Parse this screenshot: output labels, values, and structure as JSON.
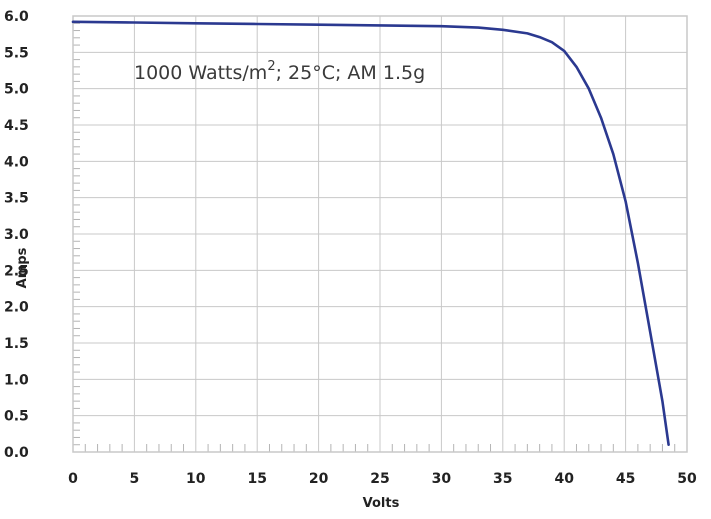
{
  "chart_data": {
    "type": "line",
    "annotation": {
      "text_before": "1000 Watts/m",
      "superscript": "2",
      "text_after": "; 25°C; AM 1.5g"
    },
    "xlabel": "Volts",
    "ylabel": "Amps",
    "xlim": [
      0,
      50
    ],
    "ylim": [
      0.0,
      6.0
    ],
    "x_ticks": [
      0,
      5,
      10,
      15,
      20,
      25,
      30,
      35,
      40,
      45,
      50
    ],
    "x_tick_labels": [
      "0",
      "5",
      "10",
      "15",
      "20",
      "25",
      "30",
      "35",
      "40",
      "45",
      "50"
    ],
    "y_ticks": [
      0.0,
      0.5,
      1.0,
      1.5,
      2.0,
      2.5,
      3.0,
      3.5,
      4.0,
      4.5,
      5.0,
      5.5,
      6.0
    ],
    "y_tick_labels": [
      "0.0",
      "0.5",
      "1.0",
      "1.5",
      "2.0",
      "2.5",
      "3.0",
      "3.5",
      "4.0",
      "4.5",
      "5.0",
      "5.5",
      "6.0"
    ],
    "grid": true,
    "colors": {
      "curve": "#2b3990",
      "grid": "#c8c8c8",
      "frame": "#c8c8c8"
    },
    "series": [
      {
        "x": [
          0,
          5,
          10,
          15,
          20,
          25,
          30,
          33,
          35,
          37,
          38,
          39,
          40,
          41,
          42,
          43,
          44,
          45,
          46,
          47,
          48,
          48.5
        ],
        "y": [
          5.92,
          5.91,
          5.9,
          5.89,
          5.88,
          5.87,
          5.86,
          5.84,
          5.81,
          5.76,
          5.71,
          5.64,
          5.52,
          5.3,
          5.0,
          4.6,
          4.1,
          3.45,
          2.6,
          1.65,
          0.7,
          0.1
        ]
      }
    ]
  }
}
